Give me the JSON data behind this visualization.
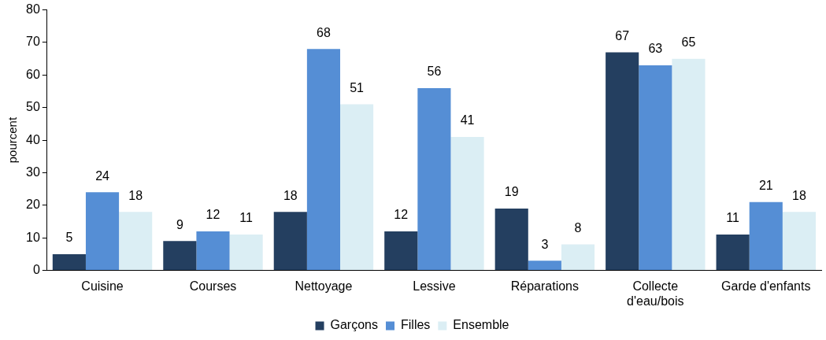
{
  "chart_data": {
    "type": "bar",
    "ylabel": "pourcent",
    "categories": [
      "Cuisine",
      "Courses",
      "Nettoyage",
      "Lessive",
      "Réparations",
      "Collecte d'eau/bois",
      "Garde d'enfants"
    ],
    "series": [
      {
        "name": "Garçons",
        "color": "#243f60",
        "values": [
          5,
          9,
          18,
          12,
          19,
          67,
          11
        ]
      },
      {
        "name": "Filles",
        "color": "#558ed5",
        "values": [
          24,
          12,
          68,
          56,
          3,
          63,
          21
        ]
      },
      {
        "name": "Ensemble",
        "color": "#dbeef4",
        "values": [
          18,
          11,
          51,
          41,
          8,
          65,
          18
        ]
      }
    ],
    "ylim": [
      0,
      80
    ],
    "yticks": [
      0,
      10,
      20,
      30,
      40,
      50,
      60,
      70,
      80
    ],
    "grid": false,
    "legend": "bottom",
    "data_labels": true
  }
}
